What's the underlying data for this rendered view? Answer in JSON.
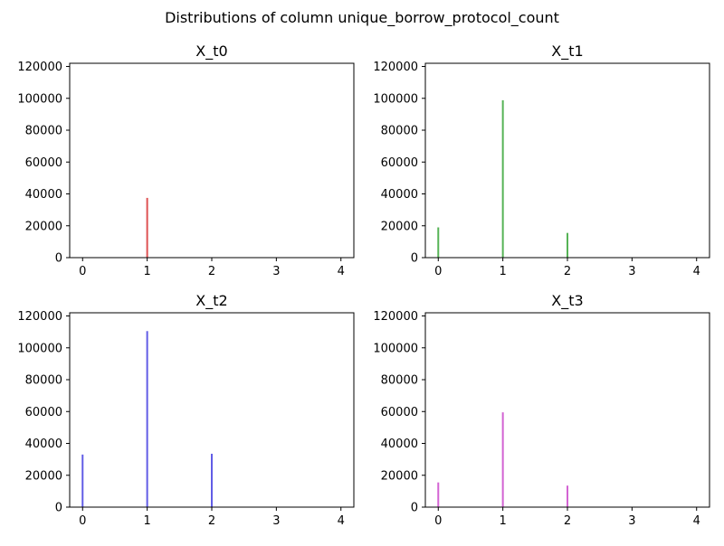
{
  "figure": {
    "suptitle": "Distributions of column unique_borrow_protocol_count"
  },
  "chart_data": [
    {
      "type": "bar",
      "title": "X_t0",
      "color": "#d62728",
      "xlim": [
        -0.2,
        4.2
      ],
      "ylim": [
        0,
        122000
      ],
      "xticks": [
        0,
        1,
        2,
        3,
        4
      ],
      "yticks": [
        0,
        20000,
        40000,
        60000,
        80000,
        100000,
        120000
      ],
      "bars": [
        {
          "x": 1,
          "value": 37500
        }
      ],
      "xlabel": "",
      "ylabel": ""
    },
    {
      "type": "bar",
      "title": "X_t1",
      "color": "#2ca02c",
      "xlim": [
        -0.2,
        4.2
      ],
      "ylim": [
        0,
        122000
      ],
      "xticks": [
        0,
        1,
        2,
        3,
        4
      ],
      "yticks": [
        0,
        20000,
        40000,
        60000,
        80000,
        100000,
        120000
      ],
      "bars": [
        {
          "x": 0,
          "value": 19000
        },
        {
          "x": 1,
          "value": 98800
        },
        {
          "x": 2,
          "value": 15500
        }
      ],
      "xlabel": "",
      "ylabel": ""
    },
    {
      "type": "bar",
      "title": "X_t2",
      "color": "#3a34e0",
      "xlim": [
        -0.2,
        4.2
      ],
      "ylim": [
        0,
        122000
      ],
      "xticks": [
        0,
        1,
        2,
        3,
        4
      ],
      "yticks": [
        0,
        20000,
        40000,
        60000,
        80000,
        100000,
        120000
      ],
      "bars": [
        {
          "x": 0,
          "value": 33000
        },
        {
          "x": 1,
          "value": 110500
        },
        {
          "x": 2,
          "value": 33500
        }
      ],
      "xlabel": "",
      "ylabel": ""
    },
    {
      "type": "bar",
      "title": "X_t3",
      "color": "#c83cc8",
      "xlim": [
        -0.2,
        4.2
      ],
      "ylim": [
        0,
        122000
      ],
      "xticks": [
        0,
        1,
        2,
        3,
        4
      ],
      "yticks": [
        0,
        20000,
        40000,
        60000,
        80000,
        100000,
        120000
      ],
      "bars": [
        {
          "x": 0,
          "value": 15500
        },
        {
          "x": 1,
          "value": 59500
        },
        {
          "x": 2,
          "value": 13500
        }
      ],
      "xlabel": "",
      "ylabel": ""
    }
  ]
}
